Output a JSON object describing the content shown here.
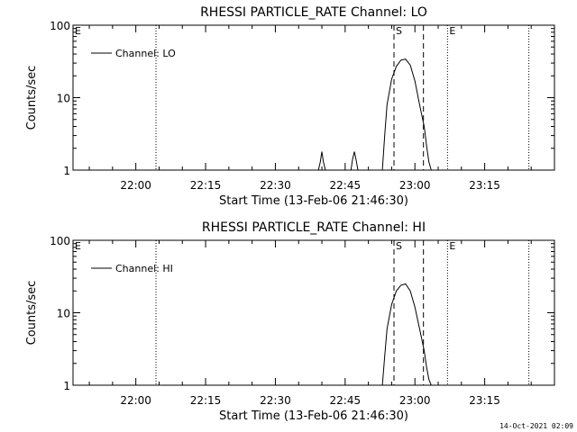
{
  "footer": {
    "timestamp": "14-Oct-2021 02:09"
  },
  "chart_data": [
    {
      "type": "line",
      "title": "RHESSI PARTICLE_RATE Channel: LO",
      "xlabel": "Start Time (13-Feb-06 21:46:30)",
      "ylabel": "Counts/sec",
      "yscale": "log",
      "ylim": [
        1,
        100
      ],
      "xlim": [
        "21:46:30",
        "23:30:00"
      ],
      "x_ticks": [
        "22:00",
        "22:15",
        "22:30",
        "22:45",
        "23:00",
        "23:15"
      ],
      "y_ticks": [
        "1",
        "10",
        "100"
      ],
      "legend": {
        "entries": [
          "Channel: LO"
        ],
        "placement": "top-left"
      },
      "series": [
        {
          "name": "Channel: LO",
          "x": [
            "22:39:15",
            "22:39:40",
            "22:40:00",
            "22:40:20",
            "22:40:45",
            "22:46:15",
            "22:46:35",
            "22:47:00",
            "22:47:20",
            "22:47:45",
            "22:53:00",
            "22:53:30",
            "22:54:00",
            "22:55:00",
            "22:56:00",
            "22:57:00",
            "22:58:00",
            "22:59:00",
            "23:00:00",
            "23:01:00",
            "23:02:00",
            "23:02:30",
            "23:03:00",
            "23:03:30"
          ],
          "values": [
            1.0,
            1.3,
            1.8,
            1.3,
            1.0,
            1.0,
            1.4,
            1.8,
            1.4,
            1.0,
            1.0,
            3.0,
            8.0,
            18.0,
            27.0,
            33.0,
            34.0,
            28.0,
            17.0,
            8.0,
            4.0,
            2.2,
            1.3,
            1.0
          ]
        }
      ],
      "markers": [
        {
          "label": "E",
          "x": "21:46:30",
          "style": "dotted"
        },
        {
          "label": "",
          "x": "22:04:20",
          "style": "dotted"
        },
        {
          "label": "S",
          "x": "22:55:30",
          "style": "dashed"
        },
        {
          "label": "",
          "x": "23:01:50",
          "style": "dashed"
        },
        {
          "label": "E",
          "x": "23:07:00",
          "style": "dotted"
        },
        {
          "label": "",
          "x": "23:24:30",
          "style": "dotted"
        }
      ]
    },
    {
      "type": "line",
      "title": "RHESSI PARTICLE_RATE Channel: HI",
      "xlabel": "Start Time (13-Feb-06 21:46:30)",
      "ylabel": "Counts/sec",
      "yscale": "log",
      "ylim": [
        1,
        100
      ],
      "xlim": [
        "21:46:30",
        "23:30:00"
      ],
      "x_ticks": [
        "22:00",
        "22:15",
        "22:30",
        "22:45",
        "23:00",
        "23:15"
      ],
      "y_ticks": [
        "1",
        "10",
        "100"
      ],
      "legend": {
        "entries": [
          "Channel: HI"
        ],
        "placement": "top-left"
      },
      "series": [
        {
          "name": "Channel: HI",
          "x": [
            "22:53:00",
            "22:53:30",
            "22:54:00",
            "22:55:00",
            "22:56:00",
            "22:57:00",
            "22:58:00",
            "22:59:00",
            "23:00:00",
            "23:01:00",
            "23:02:00",
            "23:02:30",
            "23:03:00",
            "23:03:30"
          ],
          "values": [
            1.0,
            2.5,
            6.0,
            13.0,
            20.0,
            24.0,
            25.0,
            20.0,
            12.0,
            6.0,
            3.0,
            1.8,
            1.2,
            1.0
          ]
        }
      ],
      "markers": [
        {
          "label": "E",
          "x": "21:46:30",
          "style": "dotted"
        },
        {
          "label": "",
          "x": "22:04:20",
          "style": "dotted"
        },
        {
          "label": "S",
          "x": "22:55:30",
          "style": "dashed"
        },
        {
          "label": "",
          "x": "23:01:50",
          "style": "dashed"
        },
        {
          "label": "E",
          "x": "23:07:00",
          "style": "dotted"
        },
        {
          "label": "",
          "x": "23:24:30",
          "style": "dotted"
        }
      ]
    }
  ]
}
